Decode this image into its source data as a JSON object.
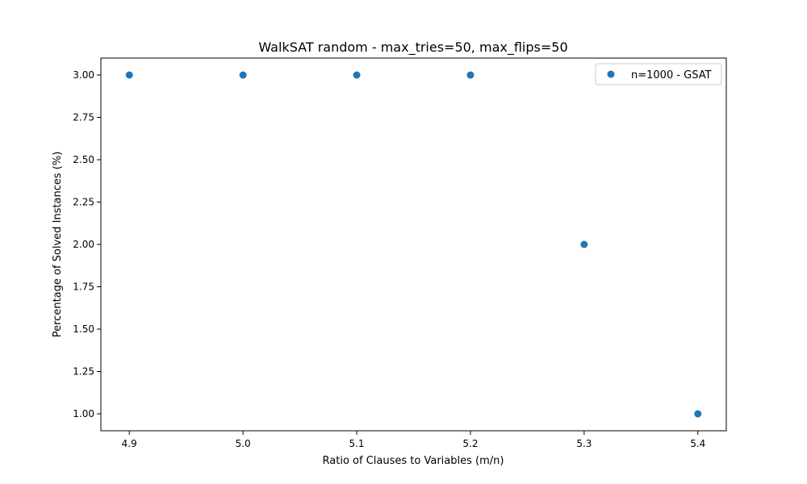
{
  "chart_data": {
    "type": "scatter",
    "title": "WalkSAT random - max_tries=50, max_flips=50",
    "xlabel": "Ratio of Clauses to Variables (m/n)",
    "ylabel": "Percentage of Solved Instances (%)",
    "xlim": [
      4.875,
      5.425
    ],
    "ylim": [
      0.9,
      3.1
    ],
    "x_ticks": [
      "4.9",
      "5.0",
      "5.1",
      "5.2",
      "5.3",
      "5.4"
    ],
    "y_ticks": [
      "1.00",
      "1.25",
      "1.50",
      "1.75",
      "2.00",
      "2.25",
      "2.50",
      "2.75",
      "3.00"
    ],
    "grid": false,
    "legend_position": "top-right",
    "series": [
      {
        "name": "n=1000 - GSAT",
        "color": "#1f77b4",
        "x": [
          4.9,
          5.0,
          5.1,
          5.2,
          5.3,
          5.4
        ],
        "y": [
          3,
          3,
          3,
          3,
          2,
          1
        ]
      }
    ]
  }
}
